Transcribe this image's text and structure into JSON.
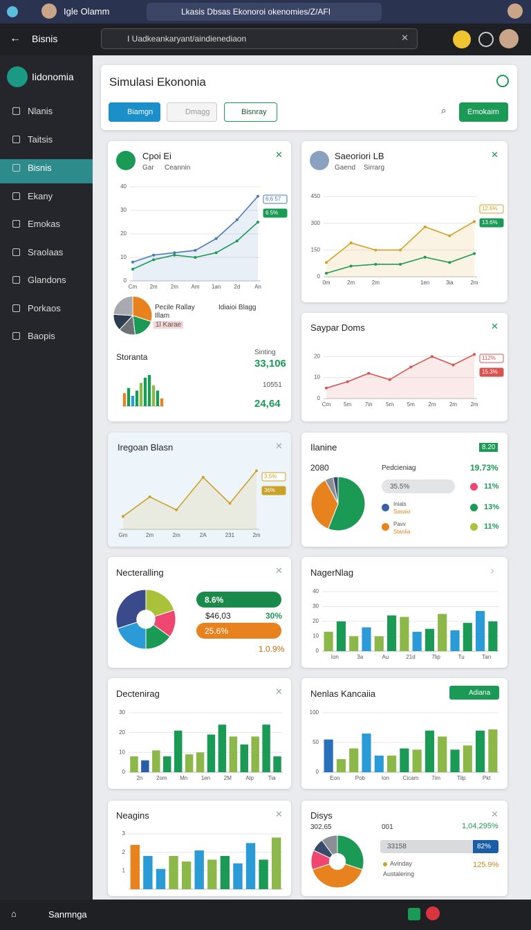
{
  "browser": {
    "tab": "Igle Olamm",
    "url": "Lkasis Dbsas Ekonoroi okenomies/Z/AFI"
  },
  "app": {
    "back_title": "Bisnis",
    "search": "I Uadkeankaryant/aindienediaon"
  },
  "sidebar": {
    "brand": "Iidonomia",
    "items": [
      "Nlanis",
      "Taitsis",
      "Bisnis",
      "Ekany",
      "Emokas",
      "Sraolaas",
      "Glandons",
      "Porkaos",
      "Baopis"
    ]
  },
  "header": {
    "title": "Simulasi Ekononia",
    "buttons": [
      "Biamgn",
      "Dmagg",
      "Bisnray"
    ],
    "action": "Emokaim"
  },
  "cards": [
    {
      "title": "Cpoi Ei",
      "chart": {
        "type": "line",
        "categories": [
          "Cm",
          "2m",
          "2m",
          "Am",
          "1an",
          "2d",
          "An"
        ],
        "ylim": [
          0,
          40
        ],
        "yticks": [
          0,
          10,
          20,
          30,
          40
        ],
        "series": [
          {
            "name": "Gar",
            "color": "#4a78b5",
            "values": [
              8,
              11,
              12,
              13,
              18,
              26,
              36
            ]
          },
          {
            "name": "Ceannin",
            "color": "#1a9a55",
            "values": [
              5,
              9,
              11,
              10,
              12,
              17,
              25
            ]
          }
        ],
        "annotations": [
          "6.6 57",
          "6 5%"
        ]
      },
      "pie": {
        "type": "pie",
        "values": [
          30,
          18,
          14,
          14,
          24
        ],
        "colors": [
          "#e8821e",
          "#1a9a55",
          "#6d7278",
          "#2c3e50",
          "#a7aab0"
        ]
      },
      "notes": [
        "Pecile Rallay",
        "Illam",
        "Idiaioi Blagg",
        "1l Karae"
      ],
      "stats": {
        "title": "Storanta",
        "label": "Sinting",
        "figures": [
          "33,106",
          "10551",
          "24,64"
        ]
      },
      "bars": {
        "type": "bar",
        "ylim": [
          0,
          12
        ],
        "values": [
          5,
          7,
          4,
          6,
          9,
          11,
          12,
          8,
          6,
          3
        ],
        "colors": [
          "#e8821e",
          "#1a9a55",
          "#2a9bd6",
          "#1a9a55",
          "#8cb84a",
          "#1a9a55",
          "#1a9a55",
          "#8cb84a",
          "#1a9a55",
          "#e8821e"
        ]
      }
    },
    {
      "title": "Saeoriori LB",
      "chart": {
        "type": "line",
        "categories": [
          "0m",
          "2m",
          "2m",
          null,
          "1en",
          "3ia",
          "2m"
        ],
        "ylim": [
          0,
          450
        ],
        "yticks": [
          0,
          150,
          300,
          450
        ],
        "series": [
          {
            "name": "Gaend",
            "color": "#d4a020",
            "values": [
              80,
              190,
              150,
              150,
              280,
              230,
              310
            ]
          },
          {
            "name": "Sirrarg",
            "color": "#1a9a55",
            "values": [
              20,
              60,
              70,
              70,
              110,
              80,
              130
            ]
          }
        ],
        "annotations": [
          "12.6%",
          "13.6%"
        ]
      }
    },
    {
      "title": "Saypar Doms",
      "chart": {
        "type": "line",
        "categories": [
          "Cm",
          "5m",
          "7in",
          "5m",
          "5m",
          "2m",
          "2m",
          "2m"
        ],
        "ylim": [
          0,
          25
        ],
        "yticks": [
          0,
          10,
          20
        ],
        "series": [
          {
            "color": "#d9534f",
            "values": [
              5,
              8,
              12,
              9,
              15,
              20,
              16,
              21
            ]
          }
        ],
        "annotations": [
          "112%",
          "15.3%"
        ]
      }
    },
    {
      "title": "Iregoan Blasn",
      "chart": {
        "type": "line",
        "categories": [
          "Gm",
          "2m",
          "2m",
          "2A",
          "231",
          "2m"
        ],
        "ylim": [
          0,
          10
        ],
        "series": [
          {
            "color": "#c9a227",
            "values": [
              2,
              5,
              3,
              8,
              4,
              9
            ]
          }
        ],
        "annotations": [
          "3.5%",
          "36%"
        ]
      }
    },
    {
      "title": "Ilanine",
      "badge": "8.20",
      "figure": "2080",
      "label": "Pedcieniag",
      "lead": "19.73%",
      "pill": "35.5%",
      "shares": [
        "11%",
        "13%",
        "11%"
      ],
      "legend": [
        [
          "Inials",
          "Sasaio"
        ],
        [
          "Pavv",
          "Stanlia"
        ]
      ],
      "chart": {
        "type": "pie",
        "values": [
          56,
          36,
          5,
          3
        ],
        "colors": [
          "#1a9a55",
          "#e8821e",
          "#8a8f96",
          "#3a4a6b"
        ]
      }
    },
    {
      "title": "Necteralling",
      "pills": [
        "8.6%",
        "25.6%"
      ],
      "figures": [
        "$46,03",
        "30%",
        "1.0.9%"
      ],
      "chart": {
        "type": "pie",
        "donut": true,
        "values": [
          20,
          15,
          15,
          20,
          30
        ],
        "colors": [
          "#a9c23a",
          "#ef476f",
          "#1a9a55",
          "#2a9bd6",
          "#3a4a8b"
        ]
      }
    },
    {
      "title": "NagerNlag",
      "chart": {
        "type": "bar",
        "categories": [
          "Ion",
          null,
          "3a",
          null,
          "Au",
          null,
          "21d",
          null,
          "7lip",
          null,
          "Tu",
          null,
          "Tan",
          null
        ],
        "ylim": [
          0,
          40
        ],
        "yticks": [
          0,
          10,
          20,
          30,
          40
        ],
        "values": [
          13,
          20,
          10,
          16,
          10,
          24,
          23,
          13,
          15,
          25,
          14,
          19,
          27,
          20
        ],
        "colors": [
          "#8cb84a",
          "#1a9a55",
          "#8cb84a",
          "#2a9bd6",
          "#8cb84a",
          "#1a9a55",
          "#8cb84a",
          "#2a9bd6",
          "#1a9a55",
          "#8cb84a",
          "#2a9bd6",
          "#1a9a55",
          "#2a9bd6",
          "#1a9a55"
        ]
      }
    },
    {
      "title": "Dectenirag",
      "chart": {
        "type": "bar",
        "categories": [
          "2n",
          null,
          "2om",
          null,
          "Mn",
          null,
          "1en",
          null,
          "2M",
          null,
          "Alp",
          null,
          "Tia",
          null
        ],
        "ylim": [
          0,
          30
        ],
        "yticks": [
          0,
          10,
          20,
          30
        ],
        "values": [
          8,
          6,
          11,
          8,
          21,
          9,
          10,
          19,
          24,
          18,
          14,
          18,
          24,
          8
        ],
        "colors": [
          "#8cb84a",
          "#2a5ea8",
          "#8cb84a",
          "#1a9a55",
          "#1a9a55",
          "#8cb84a",
          "#8cb84a",
          "#1a9a55",
          "#1a9a55",
          "#8cb84a",
          "#1a9a55",
          "#8cb84a",
          "#1a9a55",
          "#1a9a55"
        ]
      }
    },
    {
      "title": "Nenlas Kancaiia",
      "badge": "Adiana",
      "chart": {
        "type": "bar",
        "categories": [
          "Eon",
          null,
          "Pob",
          null,
          "Ion",
          null,
          "Cicam",
          null,
          "7im",
          null,
          "Tilp",
          null,
          "Pkt",
          null
        ],
        "ylim": [
          0,
          100
        ],
        "yticks": [
          0,
          50,
          100
        ],
        "values": [
          55,
          22,
          40,
          65,
          28,
          28,
          40,
          38,
          70,
          60,
          38,
          45,
          70,
          72
        ],
        "colors": [
          "#2a6fb8",
          "#8cb84a",
          "#8cb84a",
          "#2a9bd6",
          "#2a9bd6",
          "#8cb84a",
          "#1a9a55",
          "#8cb84a",
          "#1a9a55",
          "#8cb84a",
          "#1a9a55",
          "#8cb84a",
          "#1a9a55",
          "#8cb84a"
        ]
      }
    },
    {
      "title": "Neagins",
      "chart": {
        "type": "bar",
        "ylim": [
          0,
          3
        ],
        "yticks": [
          1,
          2,
          3
        ],
        "values": [
          2.4,
          1.8,
          1.1,
          1.8,
          1.5,
          2.1,
          1.6,
          1.8,
          1.4,
          2.5,
          1.6,
          2.8
        ],
        "colors": [
          "#e8821e",
          "#2a9bd6",
          "#2a9bd6",
          "#8cb84a",
          "#8cb84a",
          "#2a9bd6",
          "#8cb84a",
          "#1a9a55",
          "#2a9bd6",
          "#2a9bd6",
          "#1a9a55",
          "#8cb84a"
        ]
      }
    },
    {
      "title": "Disys",
      "figures": [
        "302,65",
        "001",
        "1,04,295%"
      ],
      "progress": [
        "33158",
        "82%"
      ],
      "notes": [
        "Avinday",
        "Austalering"
      ],
      "lead": "125.9%",
      "chart": {
        "type": "pie",
        "donut": true,
        "values": [
          30,
          40,
          12,
          8,
          10
        ],
        "colors": [
          "#1a9a55",
          "#e8821e",
          "#ef476f",
          "#3a4a6b",
          "#8a8f96"
        ]
      }
    }
  ],
  "footer": {
    "label": "Sanmnga"
  }
}
